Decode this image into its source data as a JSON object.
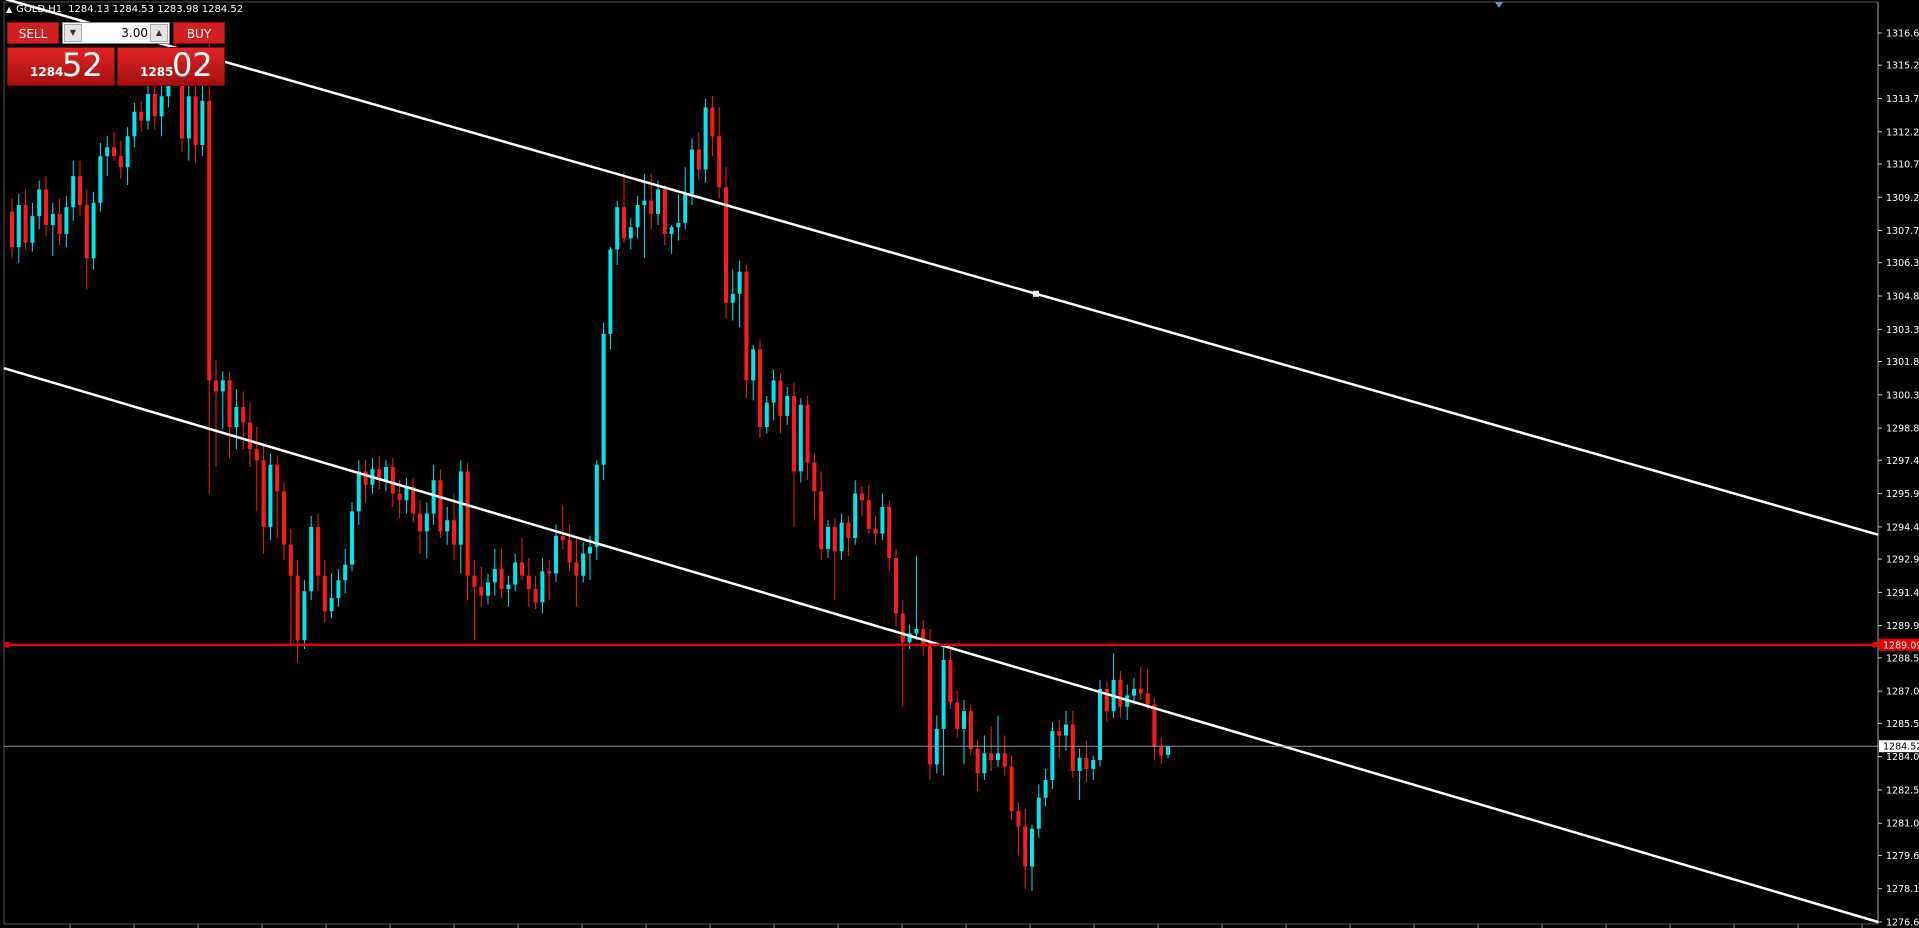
{
  "header": {
    "symbol": "GOLD,H1",
    "open": "1284.13",
    "high": "1284.53",
    "low": "1283.98",
    "close": "1284.52"
  },
  "trade_panel": {
    "sell_label": "SELL",
    "buy_label": "BUY",
    "lot": "3.00",
    "sell_price_small": "1284",
    "sell_price_big": "52",
    "buy_price_small": "1285",
    "buy_price_big": "02"
  },
  "colors": {
    "background": "#000000",
    "bull": "#00e5ee",
    "bear": "#ff1a1a",
    "trendline": "#ffffff",
    "horizontal_line": "#e60000",
    "bid_line": "#8a9aa8"
  },
  "axis": {
    "price_labels": [
      "1316.65",
      "1315.20",
      "1313.70",
      "1312.20",
      "1310.75",
      "1309.25",
      "1307.75",
      "1306.30",
      "1304.80",
      "1303.30",
      "1301.85",
      "1300.35",
      "1298.85",
      "1297.40",
      "1295.90",
      "1294.40",
      "1292.95",
      "1291.45",
      "1289.95",
      "1288.50",
      "1287.00",
      "1285.55",
      "1284.05",
      "1282.55",
      "1281.05",
      "1279.60",
      "1278.10",
      "1276.60"
    ],
    "price_min": 1276.6,
    "price_max": 1316.65,
    "horizontal_line_label": "1289.09",
    "horizontal_line_price": 1289.09,
    "bid_label": "1284.52",
    "bid_price": 1284.52
  },
  "chart_data": {
    "type": "candlestick",
    "symbol": "GOLD",
    "timeframe": "H1",
    "ylim": [
      1276.6,
      1316.65
    ],
    "candles": [
      [
        1308.6,
        1309.2,
        1306.5,
        1307.0
      ],
      [
        1307.0,
        1309.4,
        1306.3,
        1308.9
      ],
      [
        1308.9,
        1309.6,
        1306.9,
        1307.2
      ],
      [
        1307.2,
        1309.0,
        1306.8,
        1308.4
      ],
      [
        1308.4,
        1310.0,
        1307.8,
        1309.6
      ],
      [
        1309.6,
        1310.2,
        1307.5,
        1308.0
      ],
      [
        1308.0,
        1309.0,
        1306.6,
        1308.5
      ],
      [
        1308.5,
        1309.2,
        1307.1,
        1307.6
      ],
      [
        1307.6,
        1309.3,
        1307.0,
        1308.8
      ],
      [
        1308.8,
        1310.9,
        1308.2,
        1310.2
      ],
      [
        1310.2,
        1310.9,
        1308.4,
        1308.9
      ],
      [
        1308.9,
        1309.6,
        1305.1,
        1306.5
      ],
      [
        1306.5,
        1309.5,
        1306.0,
        1309.0
      ],
      [
        1309.0,
        1311.7,
        1308.6,
        1311.1
      ],
      [
        1311.1,
        1312.0,
        1310.2,
        1311.5
      ],
      [
        1311.5,
        1312.2,
        1310.9,
        1311.1
      ],
      [
        1311.1,
        1311.8,
        1310.1,
        1310.6
      ],
      [
        1310.6,
        1312.4,
        1309.8,
        1312.0
      ],
      [
        1312.0,
        1313.5,
        1311.5,
        1313.1
      ],
      [
        1313.1,
        1313.6,
        1312.2,
        1312.7
      ],
      [
        1312.7,
        1314.3,
        1312.3,
        1313.9
      ],
      [
        1313.9,
        1314.3,
        1312.3,
        1312.9
      ],
      [
        1312.9,
        1314.5,
        1312.0,
        1313.8
      ],
      [
        1313.8,
        1316.1,
        1313.3,
        1315.6
      ],
      [
        1315.6,
        1316.2,
        1314.4,
        1315.0
      ],
      [
        1315.0,
        1315.6,
        1311.3,
        1311.9
      ],
      [
        1311.9,
        1314.5,
        1310.9,
        1313.8
      ],
      [
        1313.8,
        1314.5,
        1310.8,
        1311.6
      ],
      [
        1311.6,
        1314.4,
        1311.1,
        1313.6
      ],
      [
        1313.6,
        1316.4,
        1295.9,
        1301.0
      ],
      [
        1301.0,
        1301.9,
        1297.1,
        1300.5
      ],
      [
        1300.5,
        1301.4,
        1298.8,
        1301.0
      ],
      [
        1301.0,
        1301.4,
        1297.5,
        1298.9
      ],
      [
        1298.9,
        1300.6,
        1297.9,
        1299.8
      ],
      [
        1299.8,
        1300.5,
        1297.9,
        1299.1
      ],
      [
        1299.1,
        1300.0,
        1297.1,
        1297.9
      ],
      [
        1297.9,
        1298.9,
        1295.1,
        1297.4
      ],
      [
        1297.4,
        1298.1,
        1293.2,
        1294.4
      ],
      [
        1294.4,
        1297.7,
        1293.8,
        1297.2
      ],
      [
        1297.2,
        1297.6,
        1293.9,
        1296.0
      ],
      [
        1296.0,
        1296.4,
        1292.9,
        1293.6
      ],
      [
        1293.6,
        1294.3,
        1289.1,
        1292.2
      ],
      [
        1292.2,
        1292.9,
        1288.3,
        1289.3
      ],
      [
        1289.3,
        1292.0,
        1288.9,
        1291.5
      ],
      [
        1291.5,
        1294.9,
        1291.1,
        1294.4
      ],
      [
        1294.4,
        1295.0,
        1291.5,
        1292.2
      ],
      [
        1292.2,
        1292.9,
        1290.1,
        1290.6
      ],
      [
        1290.6,
        1292.3,
        1290.3,
        1291.2
      ],
      [
        1291.2,
        1292.5,
        1290.8,
        1292.0
      ],
      [
        1292.0,
        1293.4,
        1291.4,
        1292.7
      ],
      [
        1292.7,
        1295.5,
        1292.4,
        1295.1
      ],
      [
        1295.1,
        1297.4,
        1294.5,
        1296.9
      ],
      [
        1296.9,
        1297.4,
        1295.5,
        1296.3
      ],
      [
        1296.3,
        1297.5,
        1295.9,
        1297.0
      ],
      [
        1297.0,
        1297.6,
        1296.1,
        1296.5
      ],
      [
        1296.5,
        1297.4,
        1296.0,
        1297.1
      ],
      [
        1297.1,
        1297.5,
        1295.3,
        1295.9
      ],
      [
        1295.9,
        1296.5,
        1294.8,
        1295.6
      ],
      [
        1295.6,
        1296.6,
        1295.0,
        1296.2
      ],
      [
        1296.2,
        1296.6,
        1294.6,
        1295.0
      ],
      [
        1295.0,
        1295.6,
        1293.2,
        1294.2
      ],
      [
        1294.2,
        1295.5,
        1293.0,
        1295.0
      ],
      [
        1295.0,
        1297.2,
        1294.5,
        1296.5
      ],
      [
        1296.5,
        1297.0,
        1293.9,
        1294.2
      ],
      [
        1294.2,
        1295.3,
        1293.6,
        1294.7
      ],
      [
        1294.7,
        1295.9,
        1292.9,
        1293.6
      ],
      [
        1293.6,
        1297.4,
        1292.3,
        1296.9
      ],
      [
        1296.9,
        1297.3,
        1291.1,
        1292.2
      ],
      [
        1292.2,
        1292.9,
        1289.3,
        1291.7
      ],
      [
        1291.7,
        1292.6,
        1290.8,
        1291.3
      ],
      [
        1291.3,
        1292.3,
        1290.9,
        1291.9
      ],
      [
        1291.9,
        1293.4,
        1291.3,
        1292.5
      ],
      [
        1292.5,
        1293.4,
        1291.2,
        1291.6
      ],
      [
        1291.6,
        1292.2,
        1290.8,
        1291.8
      ],
      [
        1291.8,
        1293.2,
        1291.5,
        1292.8
      ],
      [
        1292.8,
        1293.9,
        1292.0,
        1292.2
      ],
      [
        1292.2,
        1293.0,
        1290.8,
        1291.6
      ],
      [
        1291.6,
        1292.2,
        1290.7,
        1291.0
      ],
      [
        1291.0,
        1293.0,
        1290.5,
        1292.4
      ],
      [
        1292.4,
        1292.9,
        1291.1,
        1292.3
      ],
      [
        1292.3,
        1294.5,
        1291.9,
        1294.0
      ],
      [
        1294.0,
        1295.4,
        1293.4,
        1293.8
      ],
      [
        1293.8,
        1294.5,
        1292.4,
        1292.8
      ],
      [
        1292.8,
        1293.9,
        1290.8,
        1292.2
      ],
      [
        1292.2,
        1293.7,
        1291.9,
        1293.2
      ],
      [
        1293.2,
        1294.0,
        1292.0,
        1293.5
      ],
      [
        1293.5,
        1297.4,
        1292.9,
        1297.2
      ],
      [
        1297.2,
        1303.6,
        1296.5,
        1303.1
      ],
      [
        1303.1,
        1307.0,
        1302.4,
        1306.9
      ],
      [
        1306.9,
        1309.1,
        1306.2,
        1308.8
      ],
      [
        1308.8,
        1310.4,
        1307.2,
        1307.4
      ],
      [
        1307.4,
        1308.3,
        1306.9,
        1307.9
      ],
      [
        1307.9,
        1309.3,
        1307.4,
        1308.9
      ],
      [
        1308.9,
        1310.3,
        1306.5,
        1309.1
      ],
      [
        1309.1,
        1310.3,
        1307.8,
        1308.5
      ],
      [
        1308.5,
        1310.0,
        1308.0,
        1309.6
      ],
      [
        1309.6,
        1309.8,
        1307.1,
        1307.6
      ],
      [
        1307.6,
        1308.0,
        1306.7,
        1307.9
      ],
      [
        1307.9,
        1309.4,
        1307.3,
        1308.1
      ],
      [
        1308.1,
        1310.6,
        1307.8,
        1309.4
      ],
      [
        1309.4,
        1311.9,
        1308.9,
        1311.4
      ],
      [
        1311.4,
        1312.2,
        1310.0,
        1310.5
      ],
      [
        1310.5,
        1313.7,
        1309.9,
        1313.3
      ],
      [
        1313.3,
        1313.8,
        1311.1,
        1312.0
      ],
      [
        1312.0,
        1313.3,
        1309.2,
        1309.7
      ],
      [
        1309.7,
        1310.6,
        1303.8,
        1304.5
      ],
      [
        1304.5,
        1306.0,
        1303.7,
        1304.9
      ],
      [
        1304.9,
        1306.4,
        1303.4,
        1305.9
      ],
      [
        1305.9,
        1306.2,
        1300.2,
        1301.0
      ],
      [
        1301.0,
        1302.6,
        1300.1,
        1302.4
      ],
      [
        1302.4,
        1302.8,
        1298.4,
        1298.9
      ],
      [
        1298.9,
        1300.3,
        1298.6,
        1300.0
      ],
      [
        1300.0,
        1301.5,
        1299.2,
        1301.0
      ],
      [
        1301.0,
        1301.3,
        1298.6,
        1299.4
      ],
      [
        1299.4,
        1300.7,
        1299.0,
        1300.3
      ],
      [
        1300.3,
        1300.9,
        1294.4,
        1296.9
      ],
      [
        1296.9,
        1300.2,
        1296.4,
        1299.9
      ],
      [
        1299.9,
        1300.3,
        1296.5,
        1297.3
      ],
      [
        1297.3,
        1297.7,
        1294.7,
        1296.0
      ],
      [
        1296.0,
        1296.9,
        1292.9,
        1293.4
      ],
      [
        1293.4,
        1294.7,
        1293.0,
        1294.4
      ],
      [
        1294.4,
        1294.8,
        1291.1,
        1293.3
      ],
      [
        1293.3,
        1295.0,
        1292.9,
        1294.6
      ],
      [
        1294.6,
        1294.9,
        1293.1,
        1293.9
      ],
      [
        1293.9,
        1296.5,
        1293.6,
        1295.9
      ],
      [
        1295.9,
        1296.2,
        1294.9,
        1295.6
      ],
      [
        1295.6,
        1296.3,
        1294.1,
        1294.3
      ],
      [
        1294.3,
        1294.9,
        1293.6,
        1294.1
      ],
      [
        1294.1,
        1295.9,
        1293.8,
        1295.3
      ],
      [
        1295.3,
        1295.6,
        1292.4,
        1293.0
      ],
      [
        1293.0,
        1293.4,
        1289.9,
        1290.5
      ],
      [
        1290.5,
        1291.1,
        1286.3,
        1289.2
      ],
      [
        1289.2,
        1290.0,
        1288.9,
        1289.6
      ],
      [
        1289.6,
        1293.1,
        1289.3,
        1289.8
      ],
      [
        1289.8,
        1290.2,
        1288.6,
        1289.1
      ],
      [
        1289.1,
        1289.8,
        1283.0,
        1283.7
      ],
      [
        1283.7,
        1285.9,
        1283.3,
        1285.3
      ],
      [
        1285.3,
        1289.0,
        1283.2,
        1288.4
      ],
      [
        1288.4,
        1289.0,
        1286.2,
        1286.5
      ],
      [
        1286.5,
        1287.0,
        1284.9,
        1285.3
      ],
      [
        1285.3,
        1286.6,
        1283.7,
        1286.1
      ],
      [
        1286.1,
        1286.4,
        1284.1,
        1284.4
      ],
      [
        1284.4,
        1284.8,
        1282.5,
        1283.3
      ],
      [
        1283.3,
        1285.0,
        1283.0,
        1284.2
      ],
      [
        1284.2,
        1285.4,
        1283.4,
        1283.9
      ],
      [
        1283.9,
        1285.9,
        1283.6,
        1284.2
      ],
      [
        1284.2,
        1285.0,
        1283.2,
        1283.6
      ],
      [
        1283.6,
        1284.1,
        1281.2,
        1281.6
      ],
      [
        1281.6,
        1282.0,
        1279.6,
        1280.9
      ],
      [
        1280.9,
        1281.7,
        1278.1,
        1279.1
      ],
      [
        1279.1,
        1281.0,
        1278.0,
        1280.8
      ],
      [
        1280.8,
        1282.8,
        1280.4,
        1282.2
      ],
      [
        1282.2,
        1283.5,
        1281.8,
        1283.0
      ],
      [
        1283.0,
        1285.6,
        1282.6,
        1285.2
      ],
      [
        1285.2,
        1285.7,
        1284.0,
        1285.0
      ],
      [
        1285.0,
        1286.1,
        1284.3,
        1285.5
      ],
      [
        1285.5,
        1286.1,
        1283.1,
        1283.4
      ],
      [
        1283.4,
        1284.4,
        1282.1,
        1284.0
      ],
      [
        1284.0,
        1284.8,
        1282.9,
        1283.5
      ],
      [
        1283.5,
        1284.1,
        1283.0,
        1283.9
      ],
      [
        1283.9,
        1287.5,
        1283.6,
        1287.1
      ],
      [
        1287.1,
        1287.4,
        1285.6,
        1286.1
      ],
      [
        1286.1,
        1288.7,
        1285.8,
        1287.5
      ],
      [
        1287.5,
        1287.9,
        1285.8,
        1286.3
      ],
      [
        1286.3,
        1287.3,
        1285.7,
        1286.8
      ],
      [
        1286.8,
        1287.6,
        1286.4,
        1287.1
      ],
      [
        1287.1,
        1288.1,
        1286.6,
        1286.9
      ],
      [
        1286.9,
        1288.0,
        1286.2,
        1286.4
      ],
      [
        1286.4,
        1286.7,
        1283.9,
        1284.5
      ],
      [
        1284.5,
        1284.9,
        1283.7,
        1284.1
      ],
      [
        1284.13,
        1284.53,
        1283.98,
        1284.52
      ]
    ],
    "trendlines": [
      {
        "name": "upper-channel",
        "price_start": 1318.2,
        "price_end": 1294.05
      },
      {
        "name": "lower-channel",
        "price_start": 1301.55,
        "price_end": 1276.6
      }
    ],
    "horizontal_lines": [
      1289.09
    ]
  }
}
